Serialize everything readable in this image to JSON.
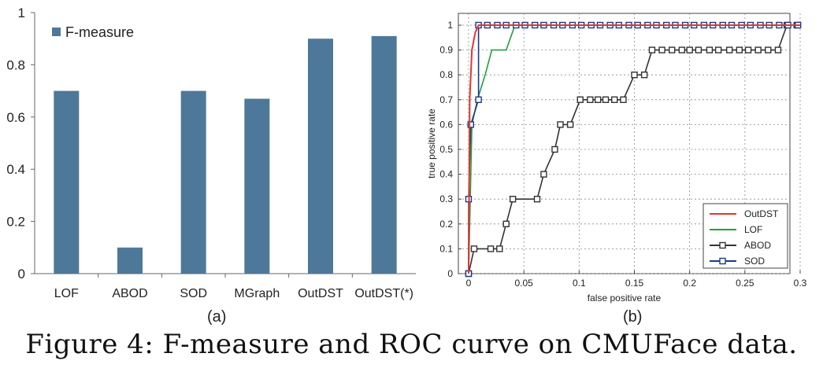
{
  "caption": "Figure 4: F-measure and ROC curve on CMUFace data.",
  "chart_data": [
    {
      "type": "bar",
      "panel_label": "(a)",
      "categories": [
        "LOF",
        "ABOD",
        "SOD",
        "MGraph",
        "OutDST",
        "OutDST(*)"
      ],
      "series": [
        {
          "name": "F-measure",
          "values": [
            0.7,
            0.1,
            0.7,
            0.67,
            0.9,
            0.91
          ]
        }
      ],
      "ylim": [
        0,
        1
      ],
      "yticks": [
        "0",
        "0.2",
        "0.4",
        "0.6",
        "0.8",
        "1"
      ],
      "ytick_values": [
        0,
        0.2,
        0.4,
        0.6,
        0.8,
        1
      ],
      "legend_position": "top-left",
      "grid": false,
      "colors": {
        "bar": "#4e7899"
      }
    },
    {
      "type": "line",
      "panel_label": "(b)",
      "xlabel": "false positive rate",
      "ylabel": "true positive rate",
      "xlim": [
        0,
        0.3
      ],
      "ylim": [
        0,
        1
      ],
      "xticks": [
        "0",
        "0.05",
        "0.1",
        "0.15",
        "0.2",
        "0.25",
        "0.3"
      ],
      "xtick_values": [
        0,
        0.05,
        0.1,
        0.15,
        0.2,
        0.25,
        0.3
      ],
      "yticks": [
        "0",
        "0.1",
        "0.2",
        "0.3",
        "0.4",
        "0.5",
        "0.6",
        "0.7",
        "0.8",
        "0.9",
        "1"
      ],
      "ytick_values": [
        0,
        0.1,
        0.2,
        0.3,
        0.4,
        0.5,
        0.6,
        0.7,
        0.8,
        0.9,
        1
      ],
      "grid": true,
      "legend_position": "bottom-right",
      "series": [
        {
          "name": "OutDST",
          "color": "#e8352a",
          "marker": "none",
          "x": [
            0,
            0.001,
            0.003,
            0.006,
            0.009,
            0.3
          ],
          "y": [
            0,
            0.7,
            0.9,
            0.97,
            1.0,
            1.0
          ]
        },
        {
          "name": "LOF",
          "color": "#1aa23c",
          "marker": "none",
          "x": [
            0,
            0.003,
            0.008,
            0.015,
            0.021,
            0.034,
            0.042,
            0.3
          ],
          "y": [
            0,
            0.6,
            0.7,
            0.8,
            0.9,
            0.9,
            1.0,
            1.0
          ]
        },
        {
          "name": "ABOD",
          "color": "#333333",
          "marker": "square",
          "x": [
            0,
            0.005,
            0.02,
            0.028,
            0.034,
            0.04,
            0.062,
            0.068,
            0.078,
            0.083,
            0.092,
            0.101,
            0.11,
            0.117,
            0.124,
            0.132,
            0.14,
            0.15,
            0.159,
            0.166,
            0.175,
            0.184,
            0.193,
            0.2,
            0.208,
            0.218,
            0.226,
            0.236,
            0.245,
            0.253,
            0.262,
            0.271,
            0.28,
            0.288,
            0.297
          ],
          "y": [
            0,
            0.1,
            0.1,
            0.1,
            0.2,
            0.3,
            0.3,
            0.4,
            0.5,
            0.6,
            0.6,
            0.7,
            0.7,
            0.7,
            0.7,
            0.7,
            0.7,
            0.8,
            0.8,
            0.9,
            0.9,
            0.9,
            0.9,
            0.9,
            0.9,
            0.9,
            0.9,
            0.9,
            0.9,
            0.9,
            0.9,
            0.9,
            0.9,
            1.0,
            1.0
          ]
        },
        {
          "name": "SOD",
          "color": "#1b3a8c",
          "marker": "square",
          "x": [
            0,
            0.0,
            0.002,
            0.009,
            0.009,
            0.017,
            0.026,
            0.034,
            0.043,
            0.051,
            0.06,
            0.068,
            0.077,
            0.085,
            0.094,
            0.102,
            0.111,
            0.119,
            0.128,
            0.136,
            0.145,
            0.153,
            0.162,
            0.17,
            0.179,
            0.187,
            0.196,
            0.204,
            0.213,
            0.221,
            0.23,
            0.238,
            0.247,
            0.255,
            0.264,
            0.272,
            0.281,
            0.289,
            0.298
          ],
          "y": [
            0,
            0.3,
            0.6,
            0.7,
            1.0,
            1.0,
            1.0,
            1.0,
            1.0,
            1.0,
            1.0,
            1.0,
            1.0,
            1.0,
            1.0,
            1.0,
            1.0,
            1.0,
            1.0,
            1.0,
            1.0,
            1.0,
            1.0,
            1.0,
            1.0,
            1.0,
            1.0,
            1.0,
            1.0,
            1.0,
            1.0,
            1.0,
            1.0,
            1.0,
            1.0,
            1.0,
            1.0,
            1.0,
            1.0
          ]
        }
      ]
    }
  ]
}
